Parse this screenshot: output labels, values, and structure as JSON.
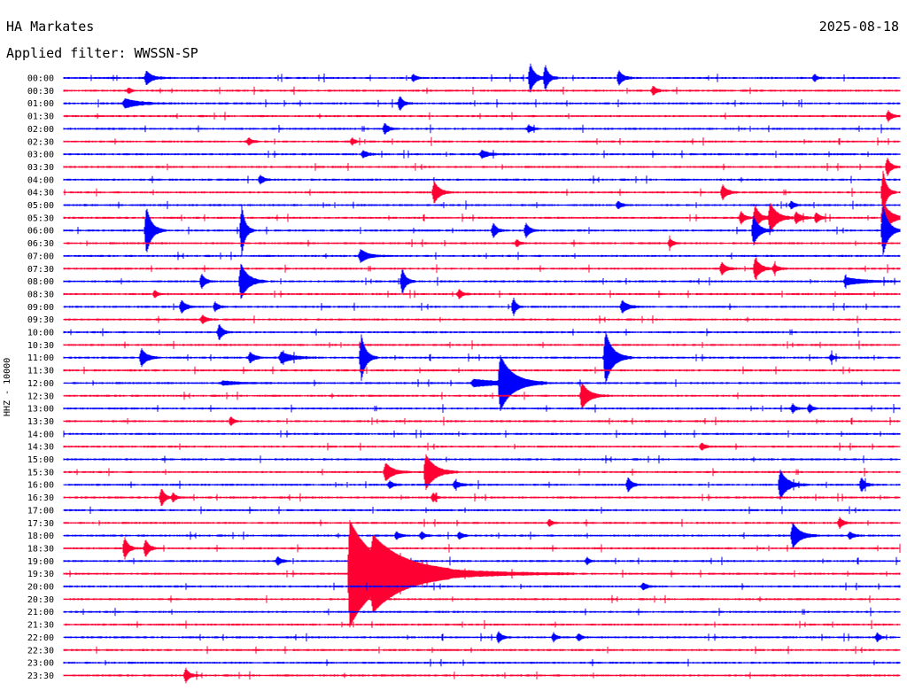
{
  "header": {
    "station": "HA Markates",
    "date": "2025-08-18",
    "filter_label": "Applied filter: WWSSN-SP"
  },
  "chart_data": {
    "type": "line",
    "title": "HA Markates",
    "subtitle": "Applied filter: WWSSN-SP",
    "ylabel": "HHZ - 10000",
    "xlabel": "",
    "date": "2025-08-18",
    "minutes_per_line": 30,
    "grid": false,
    "colors": [
      "#0000ff",
      "#ff0033"
    ],
    "trace_labels": [
      "00:00",
      "00:30",
      "01:00",
      "01:30",
      "02:00",
      "02:30",
      "03:00",
      "03:30",
      "04:00",
      "04:30",
      "05:00",
      "05:30",
      "06:00",
      "06:30",
      "07:00",
      "07:30",
      "08:00",
      "08:30",
      "09:00",
      "09:30",
      "10:00",
      "10:30",
      "11:00",
      "11:30",
      "12:00",
      "12:30",
      "13:00",
      "13:30",
      "14:00",
      "14:30",
      "15:00",
      "15:30",
      "16:00",
      "16:30",
      "17:00",
      "17:30",
      "18:00",
      "18:30",
      "19:00",
      "19:30",
      "20:00",
      "20:30",
      "21:00",
      "21:30",
      "22:00",
      "22:30",
      "23:00",
      "23:30"
    ],
    "events": [
      {
        "trace": 0,
        "at": 0.099,
        "amp": 8,
        "dur": 0.006
      },
      {
        "trace": 0,
        "at": 0.418,
        "amp": 4,
        "dur": 0.004
      },
      {
        "trace": 0,
        "at": 0.558,
        "amp": 16,
        "dur": 0.005
      },
      {
        "trace": 0,
        "at": 0.576,
        "amp": 14,
        "dur": 0.004
      },
      {
        "trace": 0,
        "at": 0.664,
        "amp": 8,
        "dur": 0.005
      },
      {
        "trace": 0,
        "at": 0.898,
        "amp": 4,
        "dur": 0.003
      },
      {
        "trace": 1,
        "at": 0.078,
        "amp": 3,
        "dur": 0.003
      },
      {
        "trace": 1,
        "at": 0.705,
        "amp": 5,
        "dur": 0.004
      },
      {
        "trace": 2,
        "at": 0.073,
        "amp": 5,
        "dur": 0.015
      },
      {
        "trace": 2,
        "at": 0.402,
        "amp": 8,
        "dur": 0.004
      },
      {
        "trace": 3,
        "at": 0.986,
        "amp": 6,
        "dur": 0.004
      },
      {
        "trace": 4,
        "at": 0.384,
        "amp": 6,
        "dur": 0.004
      },
      {
        "trace": 4,
        "at": 0.556,
        "amp": 4,
        "dur": 0.004
      },
      {
        "trace": 5,
        "at": 0.221,
        "amp": 4,
        "dur": 0.004
      },
      {
        "trace": 5,
        "at": 0.345,
        "amp": 4,
        "dur": 0.003
      },
      {
        "trace": 6,
        "at": 0.358,
        "amp": 4,
        "dur": 0.005
      },
      {
        "trace": 6,
        "at": 0.5,
        "amp": 4,
        "dur": 0.008
      },
      {
        "trace": 7,
        "at": 0.985,
        "amp": 10,
        "dur": 0.004
      },
      {
        "trace": 8,
        "at": 0.235,
        "amp": 5,
        "dur": 0.004
      },
      {
        "trace": 9,
        "at": 0.443,
        "amp": 12,
        "dur": 0.006
      },
      {
        "trace": 9,
        "at": 0.788,
        "amp": 8,
        "dur": 0.005
      },
      {
        "trace": 9,
        "at": 0.98,
        "amp": 25,
        "dur": 0.004
      },
      {
        "trace": 10,
        "at": 0.663,
        "amp": 4,
        "dur": 0.004
      },
      {
        "trace": 10,
        "at": 0.87,
        "amp": 4,
        "dur": 0.004
      },
      {
        "trace": 11,
        "at": 0.81,
        "amp": 7,
        "dur": 0.004
      },
      {
        "trace": 11,
        "at": 0.827,
        "amp": 14,
        "dur": 0.005
      },
      {
        "trace": 11,
        "at": 0.845,
        "amp": 16,
        "dur": 0.008
      },
      {
        "trace": 11,
        "at": 0.876,
        "amp": 6,
        "dur": 0.006
      },
      {
        "trace": 11,
        "at": 0.9,
        "amp": 6,
        "dur": 0.004
      },
      {
        "trace": 11,
        "at": 0.98,
        "amp": 18,
        "dur": 0.008
      },
      {
        "trace": 12,
        "at": 0.099,
        "amp": 26,
        "dur": 0.006
      },
      {
        "trace": 12,
        "at": 0.213,
        "amp": 28,
        "dur": 0.004
      },
      {
        "trace": 12,
        "at": 0.514,
        "amp": 8,
        "dur": 0.004
      },
      {
        "trace": 12,
        "at": 0.553,
        "amp": 8,
        "dur": 0.004
      },
      {
        "trace": 12,
        "at": 0.825,
        "amp": 16,
        "dur": 0.006
      },
      {
        "trace": 12,
        "at": 0.98,
        "amp": 28,
        "dur": 0.006
      },
      {
        "trace": 13,
        "at": 0.542,
        "amp": 4,
        "dur": 0.003
      },
      {
        "trace": 13,
        "at": 0.725,
        "amp": 5,
        "dur": 0.004
      },
      {
        "trace": 14,
        "at": 0.355,
        "amp": 7,
        "dur": 0.008
      },
      {
        "trace": 15,
        "at": 0.787,
        "amp": 7,
        "dur": 0.005
      },
      {
        "trace": 15,
        "at": 0.827,
        "amp": 12,
        "dur": 0.006
      },
      {
        "trace": 15,
        "at": 0.85,
        "amp": 5,
        "dur": 0.004
      },
      {
        "trace": 16,
        "at": 0.165,
        "amp": 8,
        "dur": 0.004
      },
      {
        "trace": 16,
        "at": 0.212,
        "amp": 20,
        "dur": 0.008
      },
      {
        "trace": 16,
        "at": 0.405,
        "amp": 14,
        "dur": 0.004
      },
      {
        "trace": 16,
        "at": 0.935,
        "amp": 4,
        "dur": 0.02
      },
      {
        "trace": 17,
        "at": 0.109,
        "amp": 4,
        "dur": 0.003
      },
      {
        "trace": 17,
        "at": 0.473,
        "amp": 5,
        "dur": 0.004
      },
      {
        "trace": 18,
        "at": 0.141,
        "amp": 7,
        "dur": 0.005
      },
      {
        "trace": 18,
        "at": 0.181,
        "amp": 5,
        "dur": 0.004
      },
      {
        "trace": 18,
        "at": 0.538,
        "amp": 10,
        "dur": 0.003
      },
      {
        "trace": 18,
        "at": 0.668,
        "amp": 7,
        "dur": 0.006
      },
      {
        "trace": 19,
        "at": 0.166,
        "amp": 5,
        "dur": 0.004
      },
      {
        "trace": 20,
        "at": 0.186,
        "amp": 9,
        "dur": 0.004
      },
      {
        "trace": 22,
        "at": 0.093,
        "amp": 10,
        "dur": 0.006
      },
      {
        "trace": 22,
        "at": 0.223,
        "amp": 6,
        "dur": 0.005
      },
      {
        "trace": 22,
        "at": 0.26,
        "amp": 6,
        "dur": 0.012
      },
      {
        "trace": 22,
        "at": 0.356,
        "amp": 26,
        "dur": 0.005
      },
      {
        "trace": 22,
        "at": 0.648,
        "amp": 30,
        "dur": 0.008
      },
      {
        "trace": 22,
        "at": 0.918,
        "amp": 4,
        "dur": 0.003
      },
      {
        "trace": 24,
        "at": 0.19,
        "amp": 2,
        "dur": 0.02
      },
      {
        "trace": 24,
        "at": 0.49,
        "amp": 4,
        "dur": 0.03
      },
      {
        "trace": 24,
        "at": 0.522,
        "amp": 30,
        "dur": 0.014
      },
      {
        "trace": 25,
        "at": 0.62,
        "amp": 14,
        "dur": 0.008
      },
      {
        "trace": 26,
        "at": 0.872,
        "amp": 5,
        "dur": 0.003
      },
      {
        "trace": 26,
        "at": 0.892,
        "amp": 5,
        "dur": 0.003
      },
      {
        "trace": 27,
        "at": 0.2,
        "amp": 5,
        "dur": 0.003
      },
      {
        "trace": 29,
        "at": 0.763,
        "amp": 4,
        "dur": 0.004
      },
      {
        "trace": 31,
        "at": 0.385,
        "amp": 10,
        "dur": 0.008
      },
      {
        "trace": 31,
        "at": 0.433,
        "amp": 20,
        "dur": 0.01
      },
      {
        "trace": 32,
        "at": 0.39,
        "amp": 4,
        "dur": 0.004
      },
      {
        "trace": 32,
        "at": 0.468,
        "amp": 4,
        "dur": 0.006
      },
      {
        "trace": 32,
        "at": 0.675,
        "amp": 8,
        "dur": 0.004
      },
      {
        "trace": 32,
        "at": 0.857,
        "amp": 16,
        "dur": 0.008
      },
      {
        "trace": 32,
        "at": 0.954,
        "amp": 8,
        "dur": 0.004
      },
      {
        "trace": 33,
        "at": 0.117,
        "amp": 10,
        "dur": 0.004
      },
      {
        "trace": 33,
        "at": 0.131,
        "amp": 5,
        "dur": 0.003
      },
      {
        "trace": 33,
        "at": 0.442,
        "amp": 5,
        "dur": 0.003
      },
      {
        "trace": 35,
        "at": 0.581,
        "amp": 4,
        "dur": 0.003
      },
      {
        "trace": 35,
        "at": 0.928,
        "amp": 6,
        "dur": 0.004
      },
      {
        "trace": 36,
        "at": 0.398,
        "amp": 4,
        "dur": 0.004
      },
      {
        "trace": 36,
        "at": 0.428,
        "amp": 4,
        "dur": 0.004
      },
      {
        "trace": 36,
        "at": 0.473,
        "amp": 4,
        "dur": 0.004
      },
      {
        "trace": 36,
        "at": 0.872,
        "amp": 14,
        "dur": 0.008
      },
      {
        "trace": 36,
        "at": 0.94,
        "amp": 4,
        "dur": 0.004
      },
      {
        "trace": 37,
        "at": 0.073,
        "amp": 12,
        "dur": 0.004
      },
      {
        "trace": 37,
        "at": 0.098,
        "amp": 10,
        "dur": 0.004
      },
      {
        "trace": 38,
        "at": 0.256,
        "amp": 5,
        "dur": 0.004
      },
      {
        "trace": 38,
        "at": 0.626,
        "amp": 4,
        "dur": 0.003
      },
      {
        "trace": 39,
        "at": 0.342,
        "amp": 60,
        "dur": 0.03
      },
      {
        "trace": 39,
        "at": 0.37,
        "amp": 20,
        "dur": 0.06
      },
      {
        "trace": 40,
        "at": 0.693,
        "amp": 4,
        "dur": 0.004
      },
      {
        "trace": 44,
        "at": 0.52,
        "amp": 6,
        "dur": 0.004
      },
      {
        "trace": 44,
        "at": 0.586,
        "amp": 5,
        "dur": 0.003
      },
      {
        "trace": 44,
        "at": 0.616,
        "amp": 4,
        "dur": 0.003
      },
      {
        "trace": 44,
        "at": 0.973,
        "amp": 5,
        "dur": 0.003
      },
      {
        "trace": 47,
        "at": 0.146,
        "amp": 8,
        "dur": 0.004
      }
    ]
  }
}
